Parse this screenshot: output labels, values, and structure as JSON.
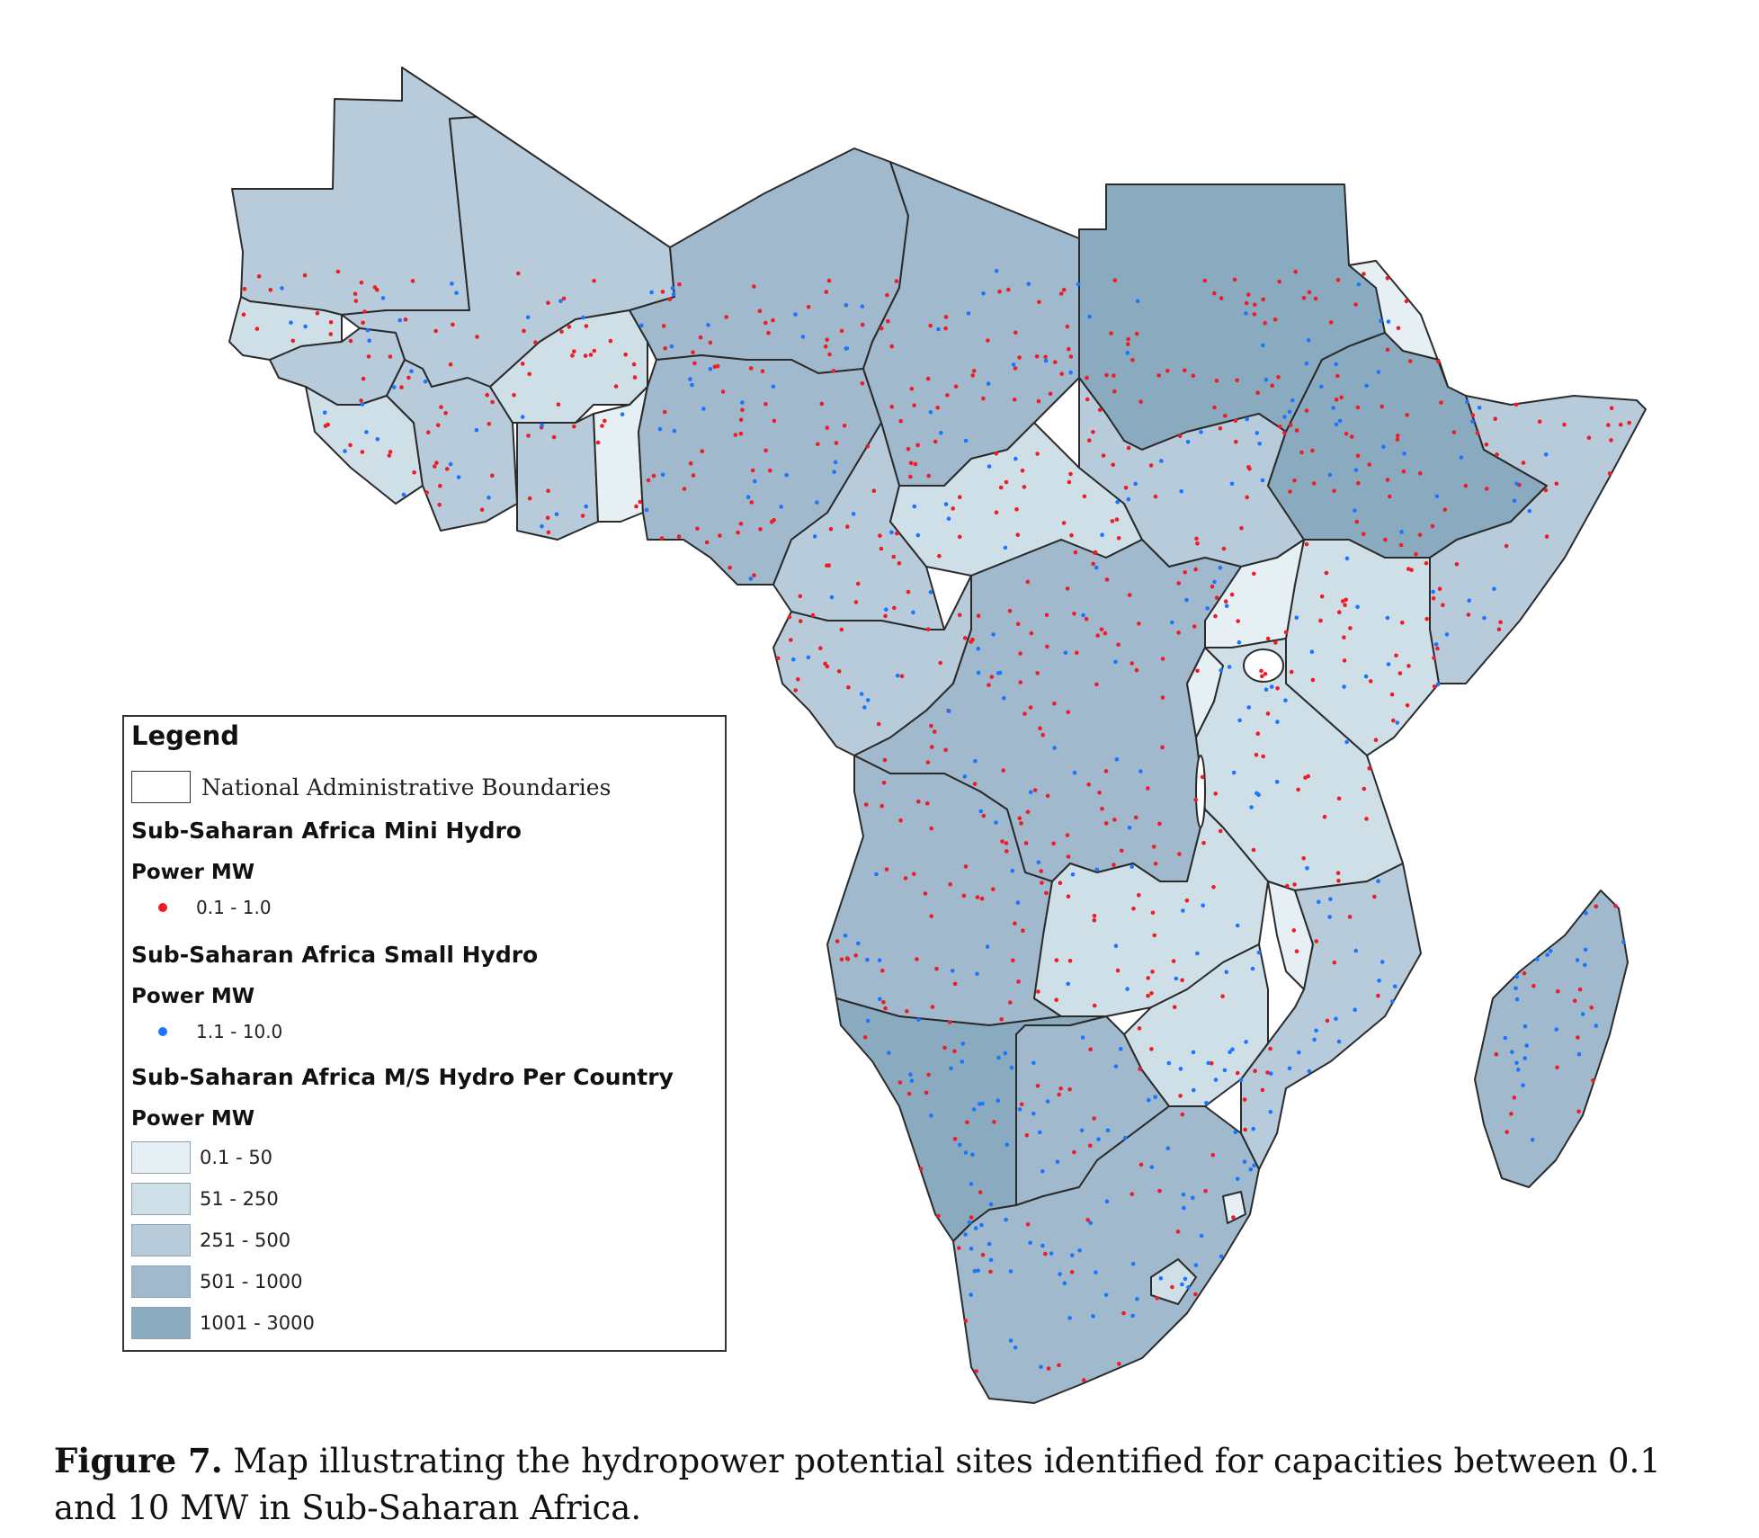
{
  "legend": {
    "title": "Legend",
    "boundaries_label": "National Administrative Boundaries",
    "mini_hydro": {
      "title": "Sub-Saharan Africa Mini Hydro",
      "unit": "Power MW",
      "range": "0.1 - 1.0",
      "color": "#ee1c25"
    },
    "small_hydro": {
      "title": "Sub-Saharan Africa Small Hydro",
      "unit": "Power MW",
      "range": "1.1 - 10.0",
      "color": "#1a75ff"
    },
    "per_country": {
      "title": "Sub-Saharan Africa M/S Hydro Per Country",
      "unit": "Power MW",
      "classes": [
        {
          "label": "0.1 - 50",
          "color": "#e6f0f4"
        },
        {
          "label": "51 - 250",
          "color": "#cfdfe8"
        },
        {
          "label": "251 - 500",
          "color": "#b7cbdb"
        },
        {
          "label": "501 - 1000",
          "color": "#a0b9cc"
        },
        {
          "label": "1001 - 3000",
          "color": "#8aabbf"
        }
      ]
    }
  },
  "caption": {
    "label": "Figure 7.",
    "text": "Map illustrating the hydropower potential sites identified for capacities between 0.1 and 10 MW in Sub-Saharan Africa."
  }
}
